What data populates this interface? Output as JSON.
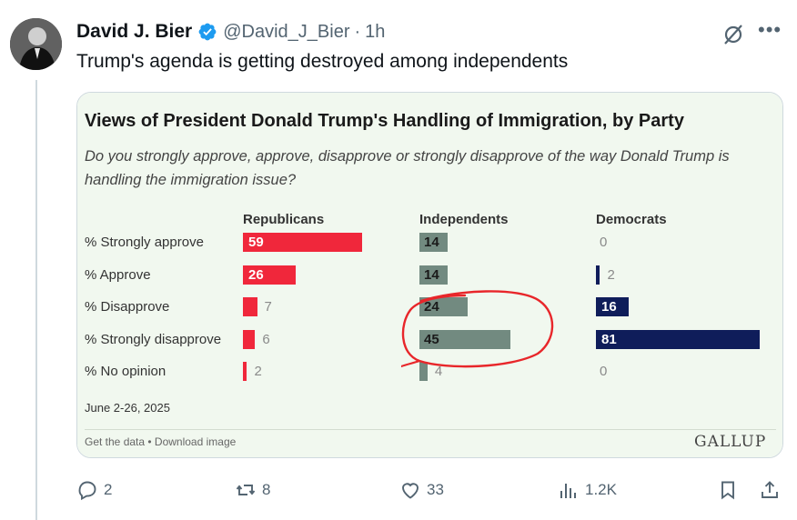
{
  "tweet": {
    "display_name": "David J. Bier",
    "handle": "@David_J_Bier",
    "separator": "·",
    "time": "1h",
    "text": "Trump's agenda is getting destroyed among independents"
  },
  "card": {
    "title": "Views of President Donald Trump's Handling of Immigration, by Party",
    "question": "Do you strongly approve, approve, disapprove or strongly disapprove of the way Donald Trump is handling the immigration issue?",
    "date_range": "June 2-26, 2025",
    "footer_links": "Get the data • Download image",
    "source_logo": "GALLUP",
    "annotation": "hand-drawn red circle around Independents disapprove bars"
  },
  "chart_data": {
    "type": "bar",
    "orientation": "horizontal",
    "categories": [
      "% Strongly approve",
      "% Approve",
      "% Disapprove",
      "% Strongly disapprove",
      "% No opinion"
    ],
    "series": [
      {
        "name": "Republicans",
        "values": [
          59,
          26,
          7,
          6,
          2
        ],
        "color": "#f0273b"
      },
      {
        "name": "Independents",
        "values": [
          14,
          14,
          24,
          45,
          4
        ],
        "color": "#728a80"
      },
      {
        "name": "Democrats",
        "values": [
          0,
          2,
          16,
          81,
          0
        ],
        "color": "#0f1d5a"
      }
    ],
    "xlim": [
      0,
      100
    ]
  },
  "actions": {
    "replies": "2",
    "reposts": "8",
    "likes": "33",
    "views": "1.2K"
  },
  "colors": {
    "verified": "#1d9bf0",
    "muted_text": "#536471",
    "card_bg": "#f1f8ef",
    "annotation_red": "#e8262a"
  }
}
